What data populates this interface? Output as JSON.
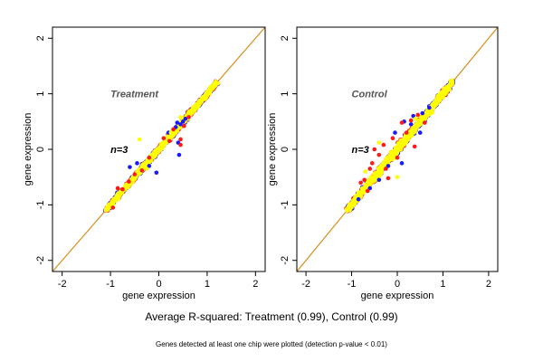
{
  "chart_data": [
    {
      "type": "scatter",
      "title": "Treatment",
      "annotation": "n=3",
      "xlabel": "gene expression",
      "ylabel": "gene expression",
      "xlim": [
        -2.2,
        2.2
      ],
      "ylim": [
        -2.2,
        2.2
      ],
      "xticks": [
        -2,
        -1,
        0,
        1,
        2
      ],
      "yticks": [
        -2,
        -1,
        0,
        1,
        2
      ],
      "grid": false,
      "reference_line": {
        "slope": 1,
        "intercept": 0,
        "color": "#d9901a"
      },
      "point_cloud": {
        "x_start": -1.1,
        "x_end": 1.2,
        "band": 0.06
      },
      "series": [
        {
          "color": "#1a1aff",
          "points": [
            [
              -0.6,
              -0.32
            ],
            [
              -0.45,
              -0.25
            ],
            [
              -0.2,
              -0.3
            ],
            [
              0.45,
              0.45
            ],
            [
              0.5,
              0.5
            ],
            [
              0.38,
              0.48
            ],
            [
              0.35,
              0.4
            ],
            [
              0.4,
              0.12
            ],
            [
              0.42,
              -0.1
            ],
            [
              -0.05,
              -0.42
            ],
            [
              0.2,
              0.3
            ],
            [
              0.55,
              0.55
            ]
          ]
        },
        {
          "color": "#ff1a1a",
          "points": [
            [
              -0.85,
              -0.7
            ],
            [
              -0.75,
              -0.72
            ],
            [
              -0.35,
              -0.38
            ],
            [
              -0.5,
              -0.45
            ],
            [
              0.45,
              0.18
            ],
            [
              0.45,
              0.08
            ],
            [
              0.52,
              0.42
            ],
            [
              0.1,
              0.2
            ],
            [
              0.3,
              0.36
            ],
            [
              -0.95,
              -1.05
            ],
            [
              0.62,
              0.58
            ],
            [
              -0.62,
              -0.58
            ],
            [
              -0.2,
              -0.15
            ],
            [
              0.22,
              0.15
            ]
          ]
        },
        {
          "color": "#ffff00",
          "points": [
            [
              -0.4,
              0.18
            ],
            [
              -0.25,
              -0.35
            ],
            [
              0.25,
              0.3
            ],
            [
              0.45,
              0.58
            ]
          ]
        }
      ]
    },
    {
      "type": "scatter",
      "title": "Control",
      "annotation": "n=3",
      "xlabel": "gene expression",
      "ylabel": "gene expression",
      "xlim": [
        -2.2,
        2.2
      ],
      "ylim": [
        -2.2,
        2.2
      ],
      "xticks": [
        -2,
        -1,
        0,
        1,
        2
      ],
      "yticks": [
        -2,
        -1,
        0,
        1,
        2
      ],
      "grid": false,
      "reference_line": {
        "slope": 1,
        "intercept": 0,
        "color": "#d9901a"
      },
      "point_cloud": {
        "x_start": -1.1,
        "x_end": 1.2,
        "band": 0.1
      },
      "series": [
        {
          "color": "#1a1aff",
          "points": [
            [
              0.15,
              0.5
            ],
            [
              0.3,
              0.45
            ],
            [
              -0.05,
              0.3
            ],
            [
              -0.2,
              -0.3
            ],
            [
              0.5,
              0.3
            ],
            [
              -0.6,
              -0.7
            ],
            [
              0.7,
              0.75
            ],
            [
              -0.85,
              -0.9
            ],
            [
              0.1,
              -0.25
            ],
            [
              0.35,
              0.6
            ],
            [
              -0.4,
              -0.55
            ],
            [
              0.55,
              0.65
            ]
          ]
        },
        {
          "color": "#ff1a1a",
          "points": [
            [
              -0.6,
              -0.35
            ],
            [
              -0.72,
              -0.55
            ],
            [
              -0.4,
              -0.1
            ],
            [
              -0.5,
              0.0
            ],
            [
              0.3,
              0.52
            ],
            [
              0.1,
              0.48
            ],
            [
              -0.2,
              -0.52
            ],
            [
              0.38,
              0.05
            ],
            [
              -0.8,
              -0.6
            ],
            [
              -0.3,
              0.08
            ],
            [
              0.6,
              0.48
            ],
            [
              -0.1,
              0.2
            ],
            [
              0.2,
              0.3
            ],
            [
              -0.55,
              -0.25
            ],
            [
              0.45,
              0.62
            ],
            [
              -0.65,
              -0.75
            ],
            [
              -0.25,
              -0.35
            ],
            [
              0.0,
              -0.15
            ]
          ]
        },
        {
          "color": "#ffff00",
          "points": [
            [
              -0.7,
              -0.4
            ],
            [
              -0.4,
              0.12
            ],
            [
              0.0,
              -0.5
            ],
            [
              0.4,
              0.55
            ]
          ]
        }
      ]
    }
  ],
  "caption": "Average R-squared: Treatment (0.99), Control (0.99)",
  "footnote": "Genes detected at least one chip were plotted (detection p-value < 0.01)"
}
